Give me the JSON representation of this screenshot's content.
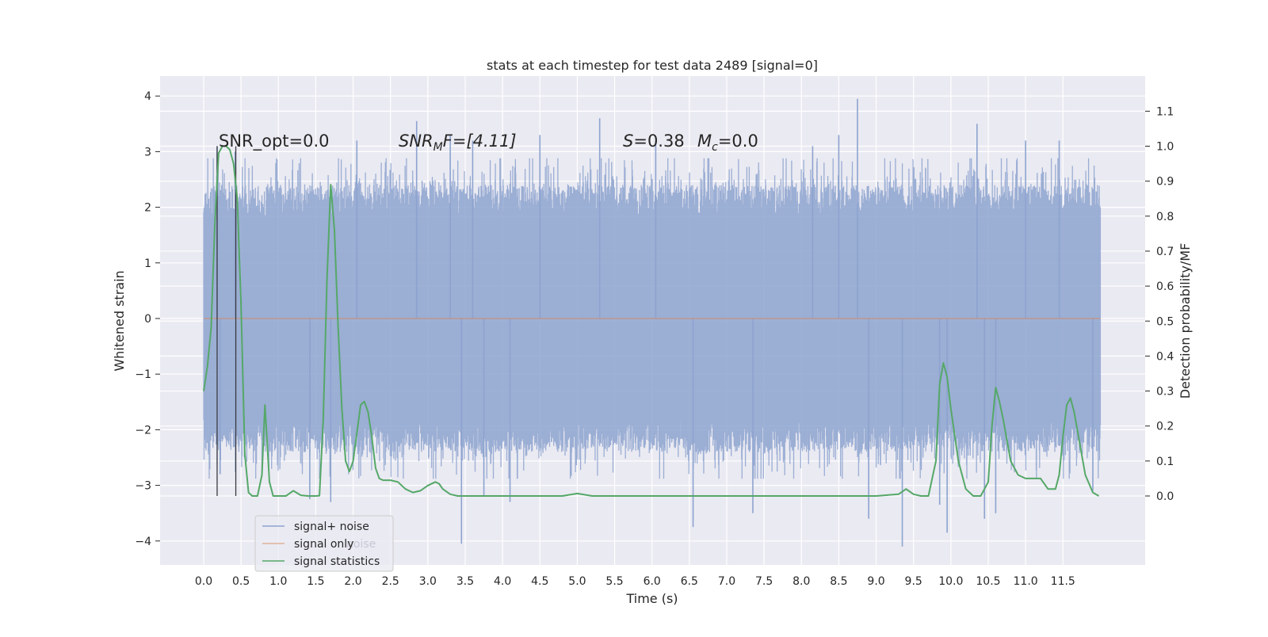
{
  "chart_data": {
    "type": "line",
    "title": "stats at each timestep for test data 2489 [signal=0]",
    "xlabel": "Time (s)",
    "ylabel": "Whitened strain",
    "y2label": "Detection probability/MF",
    "xlim": [
      -0.3,
      12.37
    ],
    "ylim": [
      -4.4,
      4.35
    ],
    "y2lim": [
      -0.197,
      1.152
    ],
    "xticks": [
      "0.0",
      "0.5",
      "1.0",
      "1.5",
      "2.0",
      "2.5",
      "3.0",
      "3.5",
      "4.0",
      "4.5",
      "5.0",
      "5.5",
      "6.0",
      "6.5",
      "7.0",
      "7.5",
      "8.0",
      "8.5",
      "9.0",
      "9.5",
      "10.0",
      "10.5",
      "11.0",
      "11.5"
    ],
    "yticks": [
      "4",
      "3",
      "2",
      "1",
      "0",
      "−1",
      "−2",
      "−3",
      "−4"
    ],
    "y2ticks": [
      "1.1",
      "1.0",
      "0.9",
      "0.8",
      "0.7",
      "0.6",
      "0.5",
      "0.4",
      "0.3",
      "0.2",
      "0.1",
      "0.0"
    ],
    "grid": true,
    "annotations": {
      "snr_opt": "SNR_opt=0.0",
      "snr_mf_sym": "SNR",
      "snr_mf_sub": "M",
      "snr_mf_rest": "F=[4.11]",
      "s_sym": "S",
      "s_rest": "=0.38",
      "mc_sym": "M",
      "mc_sub": "c",
      "mc_rest": "=0.0"
    },
    "vlines_x": [
      0.18,
      0.43
    ],
    "legend": {
      "placement": "lower-left",
      "entries": [
        "signal+ noise",
        "signal only",
        "signal statistics"
      ],
      "ghost_text": "noise"
    },
    "series": [
      {
        "name": "signal+ noise",
        "color": "#8da3cf",
        "x_range": [
          0.0,
          12.0
        ],
        "envelope_upper_typical": 2.4,
        "envelope_lower_typical": -2.4,
        "peak_spikes": [
          {
            "x": 0.18,
            "y": 3.1
          },
          {
            "x": 0.42,
            "y": 3.0
          },
          {
            "x": 0.22,
            "y": -2.8
          },
          {
            "x": 1.42,
            "y": -3.25
          },
          {
            "x": 1.7,
            "y": -3.3
          },
          {
            "x": 2.05,
            "y": 3.2
          },
          {
            "x": 2.85,
            "y": 3.55
          },
          {
            "x": 3.3,
            "y": 3.3
          },
          {
            "x": 3.45,
            "y": -4.05
          },
          {
            "x": 3.6,
            "y": 3.2
          },
          {
            "x": 3.75,
            "y": -3.2
          },
          {
            "x": 4.1,
            "y": -3.3
          },
          {
            "x": 4.5,
            "y": 3.3
          },
          {
            "x": 5.3,
            "y": 3.6
          },
          {
            "x": 6.05,
            "y": 3.2
          },
          {
            "x": 6.55,
            "y": -3.75
          },
          {
            "x": 7.35,
            "y": -3.5
          },
          {
            "x": 8.15,
            "y": 3.1
          },
          {
            "x": 8.5,
            "y": 3.3
          },
          {
            "x": 8.75,
            "y": 3.95
          },
          {
            "x": 8.9,
            "y": -3.6
          },
          {
            "x": 9.35,
            "y": -4.1
          },
          {
            "x": 9.85,
            "y": -3.35
          },
          {
            "x": 9.95,
            "y": -3.85
          },
          {
            "x": 10.35,
            "y": 3.5
          },
          {
            "x": 10.45,
            "y": -3.6
          },
          {
            "x": 10.6,
            "y": -3.5
          },
          {
            "x": 11.0,
            "y": 3.2
          },
          {
            "x": 11.45,
            "y": 3.2
          },
          {
            "x": 11.9,
            "y": -3.1
          }
        ]
      },
      {
        "name": "signal only",
        "color": "#dd8452",
        "x": [
          0.0,
          12.0
        ],
        "y": [
          0.0,
          0.0
        ]
      },
      {
        "name": "signal statistics",
        "color": "#55a868",
        "axis": "right",
        "x": [
          0.0,
          0.05,
          0.1,
          0.15,
          0.2,
          0.25,
          0.3,
          0.35,
          0.4,
          0.45,
          0.5,
          0.55,
          0.6,
          0.65,
          0.72,
          0.78,
          0.82,
          0.88,
          0.93,
          1.0,
          1.1,
          1.2,
          1.3,
          1.4,
          1.5,
          1.55,
          1.6,
          1.65,
          1.7,
          1.75,
          1.8,
          1.85,
          1.9,
          1.95,
          2.0,
          2.05,
          2.1,
          2.15,
          2.2,
          2.25,
          2.3,
          2.35,
          2.4,
          2.5,
          2.6,
          2.7,
          2.8,
          2.9,
          3.0,
          3.1,
          3.15,
          3.2,
          3.3,
          3.4,
          3.5,
          3.7,
          4.0,
          4.5,
          4.8,
          5.0,
          5.2,
          5.5,
          6.0,
          6.5,
          7.0,
          7.5,
          8.0,
          8.5,
          9.0,
          9.3,
          9.4,
          9.5,
          9.6,
          9.7,
          9.8,
          9.85,
          9.9,
          9.95,
          10.0,
          10.1,
          10.2,
          10.3,
          10.4,
          10.5,
          10.55,
          10.6,
          10.65,
          10.7,
          10.8,
          10.9,
          11.0,
          11.1,
          11.2,
          11.25,
          11.3,
          11.4,
          11.45,
          11.5,
          11.55,
          11.6,
          11.65,
          11.7,
          11.8,
          11.9,
          11.98
        ],
        "y": [
          0.3,
          0.37,
          0.48,
          0.78,
          0.98,
          1.0,
          1.0,
          0.99,
          0.95,
          0.85,
          0.55,
          0.12,
          0.01,
          0.0,
          0.0,
          0.06,
          0.26,
          0.04,
          0.0,
          0.0,
          0.0,
          0.015,
          0.002,
          0.0,
          0.0,
          0.001,
          0.22,
          0.62,
          0.89,
          0.76,
          0.48,
          0.25,
          0.1,
          0.07,
          0.1,
          0.18,
          0.26,
          0.27,
          0.24,
          0.17,
          0.08,
          0.05,
          0.045,
          0.045,
          0.04,
          0.02,
          0.01,
          0.015,
          0.03,
          0.04,
          0.035,
          0.02,
          0.005,
          0.0,
          0.0,
          0.0,
          0.0,
          0.0,
          0.0,
          0.007,
          0.0,
          0.0,
          0.0,
          0.0,
          0.0,
          0.0,
          0.0,
          0.0,
          0.0,
          0.005,
          0.02,
          0.005,
          0.0,
          0.0,
          0.1,
          0.32,
          0.38,
          0.34,
          0.25,
          0.1,
          0.02,
          0.0,
          0.0,
          0.04,
          0.2,
          0.31,
          0.27,
          0.22,
          0.1,
          0.06,
          0.05,
          0.05,
          0.05,
          0.035,
          0.02,
          0.02,
          0.06,
          0.17,
          0.26,
          0.28,
          0.24,
          0.18,
          0.06,
          0.01,
          0.0
        ]
      }
    ]
  }
}
